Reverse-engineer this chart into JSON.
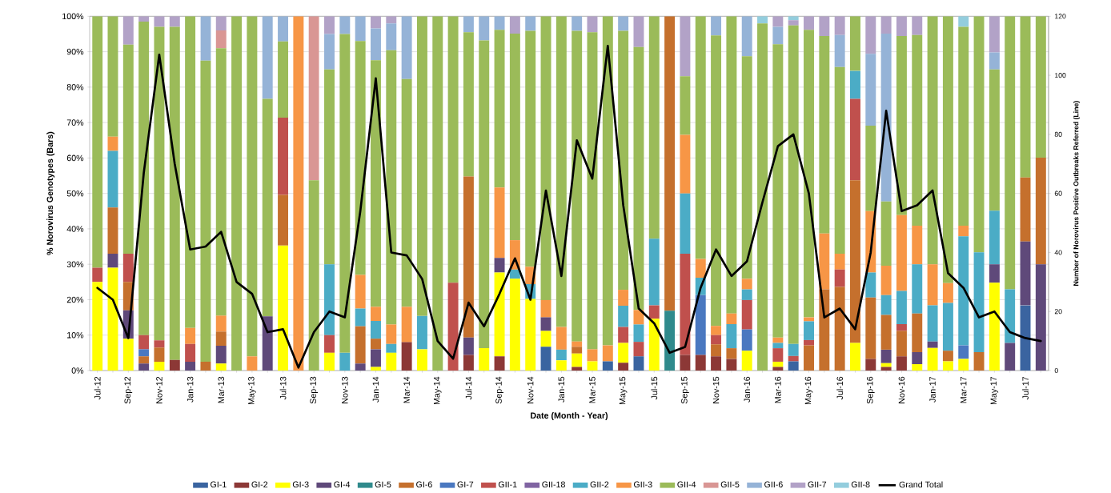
{
  "chart_data": {
    "type": "bar",
    "stacked": true,
    "xlabel": "Date (Month - Year)",
    "ylabel": "% Norovirus Genotypes (Bars)",
    "y2label": "Number of Norovirus Positive Outbreaks Referred (Line)",
    "categories": [
      "Jul-12",
      null,
      "Sep-12",
      null,
      "Nov-12",
      null,
      "Jan-13",
      null,
      "Mar-13",
      null,
      "May-13",
      null,
      "Jul-13",
      null,
      "Sep-13",
      null,
      "Nov-13",
      null,
      "Jan-14",
      null,
      "Mar-14",
      null,
      "May-14",
      null,
      "Jul-14",
      null,
      "Sep-14",
      null,
      "Nov-14",
      null,
      "Jan-15",
      null,
      "Mar-15",
      null,
      "May-15",
      null,
      "Jul-15",
      null,
      "Sep-15",
      null,
      "Nov-15",
      null,
      "Jan-16",
      null,
      "Mar-16",
      null,
      "May-16",
      null,
      "Jul-16",
      null,
      "Sep-16",
      null,
      "Nov-16",
      null,
      "Jan-17",
      null,
      "Mar-17",
      null,
      "May-17",
      null,
      "Jul-17",
      null
    ],
    "ylim": [
      0,
      100
    ],
    "yticks": [
      {
        "value": 0,
        "label": "0%"
      },
      {
        "value": 10,
        "label": "10%"
      },
      {
        "value": 20,
        "label": "20%"
      },
      {
        "value": 30,
        "label": "30%"
      },
      {
        "value": 40,
        "label": "40%"
      },
      {
        "value": 50,
        "label": "50%"
      },
      {
        "value": 60,
        "label": "60%"
      },
      {
        "value": 70,
        "label": "70%"
      },
      {
        "value": 80,
        "label": "80%"
      },
      {
        "value": 90,
        "label": "90%"
      },
      {
        "value": 100,
        "label": "100%"
      }
    ],
    "y2lim": [
      0,
      120
    ],
    "y2ticks": [
      0,
      20,
      40,
      60,
      80,
      100,
      120
    ],
    "grid": "y",
    "legend": "bottom",
    "series": [
      {
        "name": "GI-1",
        "color": "#3a64a0",
        "values": [
          0,
          0,
          0,
          0,
          0,
          0,
          0,
          0,
          0,
          0,
          0,
          0,
          0,
          0,
          0,
          0,
          0,
          0,
          0,
          0,
          0,
          0,
          0,
          0,
          0,
          0,
          0,
          0,
          0,
          6.7,
          0,
          0,
          0,
          2.6,
          0,
          4,
          0,
          0,
          0,
          0,
          0,
          0,
          0,
          0,
          0,
          2.6,
          0,
          0,
          0,
          0,
          0,
          0,
          0,
          0,
          0,
          0,
          0,
          0,
          0,
          0,
          18.4,
          0
        ]
      },
      {
        "name": "GI-2",
        "color": "#8c3836",
        "values": [
          0,
          0,
          0,
          0,
          0,
          3,
          0,
          0,
          0,
          0,
          0,
          0,
          0,
          0,
          0,
          0,
          0,
          0,
          0,
          0,
          8,
          0,
          0,
          0,
          4.4,
          0,
          4,
          0,
          0,
          0,
          0,
          1,
          0,
          0,
          2.2,
          0,
          0,
          0,
          4.4,
          4.4,
          4,
          3.3,
          0,
          0,
          1,
          0,
          0,
          0,
          0,
          0,
          3.3,
          1,
          4,
          0,
          0,
          0,
          0,
          0,
          0,
          0,
          0,
          0
        ]
      },
      {
        "name": "GI-3",
        "color": "#ffff00",
        "values": [
          25,
          29,
          9,
          0,
          2.5,
          0,
          0,
          0,
          2,
          0,
          0,
          0,
          35.3,
          0,
          0,
          5,
          0,
          0,
          1,
          5,
          0,
          6,
          0,
          0,
          0,
          6.3,
          23.7,
          25.9,
          20.2,
          4.5,
          2.9,
          3.8,
          2.6,
          0,
          5.6,
          0,
          14.6,
          0,
          0,
          0,
          0,
          0,
          5.6,
          0,
          1.5,
          0,
          0,
          0,
          0,
          7.8,
          0,
          1.1,
          0,
          1.8,
          6.4,
          2.6,
          3.3,
          0,
          24.8,
          0,
          0,
          0
        ]
      },
      {
        "name": "GI-4",
        "color": "#5f497a",
        "values": [
          0,
          4,
          8,
          2,
          0,
          0,
          2.5,
          0,
          5,
          0,
          0,
          15.3,
          0,
          0,
          0,
          0,
          0,
          2,
          5,
          0,
          0,
          0,
          0,
          0,
          4.9,
          0,
          4.1,
          0,
          0,
          3.8,
          0,
          0,
          0,
          0,
          0,
          0,
          0,
          0,
          0,
          0,
          0,
          0,
          0,
          0,
          0,
          0,
          0,
          0,
          0,
          0,
          0,
          3.8,
          0,
          3.4,
          1.8,
          0,
          0,
          0,
          5.2,
          7.8,
          18,
          30
        ]
      },
      {
        "name": "GI-5",
        "color": "#2f8a8c",
        "values": [
          0,
          0,
          0,
          0,
          0,
          0,
          0,
          0,
          0,
          0,
          0,
          0,
          0,
          0,
          0,
          0,
          0,
          0,
          0,
          0,
          0,
          0,
          0,
          0,
          0,
          0,
          0,
          0,
          0,
          0,
          0,
          0,
          0,
          0,
          0,
          0,
          0,
          16.9,
          0,
          0,
          0,
          0,
          0,
          0,
          0,
          0,
          0,
          0,
          0,
          0,
          0,
          0,
          0,
          0,
          0,
          0,
          0,
          0,
          0,
          0,
          0,
          0
        ]
      },
      {
        "name": "GI-6",
        "color": "#c5702d",
        "values": [
          0,
          13,
          8,
          2,
          4,
          0,
          0,
          2.5,
          4,
          0,
          0,
          0,
          14.3,
          0,
          0,
          0,
          0,
          10.5,
          3,
          0,
          0,
          0,
          0,
          0,
          45.5,
          0,
          0,
          0,
          0,
          0,
          0,
          1.9,
          0,
          0,
          0,
          0,
          0,
          83.1,
          0,
          0,
          3.4,
          3,
          0,
          0,
          0,
          0,
          7.1,
          22.9,
          23.6,
          45.9,
          17.3,
          9.8,
          7.2,
          10.9,
          0,
          3,
          0,
          5.2,
          0,
          0,
          18.1,
          30.1
        ]
      },
      {
        "name": "GI-7",
        "color": "#4a78c0",
        "values": [
          0,
          0,
          0,
          2,
          0,
          0,
          0,
          0,
          0,
          0,
          0,
          0,
          0,
          0,
          0,
          0,
          0,
          0,
          0,
          0,
          0,
          0,
          0,
          0,
          0,
          0,
          0,
          0,
          0,
          0,
          0,
          0,
          0,
          0,
          0,
          0,
          0,
          0,
          0,
          16.9,
          0,
          0,
          6,
          0,
          0,
          0,
          0,
          0,
          0,
          0,
          0,
          0,
          0,
          0,
          0,
          0,
          3.8,
          0,
          0,
          0,
          0,
          0
        ]
      },
      {
        "name": "GII-1",
        "color": "#c0504d",
        "values": [
          4,
          0,
          8,
          4,
          2,
          0,
          5,
          0,
          0,
          0,
          0,
          0,
          21.8,
          0,
          0,
          5,
          0,
          0,
          0,
          0,
          0,
          0,
          0,
          24.8,
          0,
          0,
          0,
          0,
          0,
          0,
          0,
          0,
          0,
          0,
          4.5,
          4.1,
          3.8,
          0,
          28.6,
          0,
          2.6,
          0,
          8.3,
          0,
          3.8,
          1.5,
          1.5,
          0,
          4.9,
          23,
          0,
          0,
          1.9,
          0,
          0,
          0,
          0,
          0,
          0,
          0,
          0,
          0
        ]
      },
      {
        "name": "GII-18",
        "color": "#8064a2",
        "values": [
          0,
          0,
          0,
          0,
          0,
          0,
          0,
          0,
          0,
          0,
          0,
          0,
          0,
          0,
          0,
          0,
          0,
          0,
          0,
          0,
          0,
          0,
          0,
          0,
          0,
          0,
          0,
          0,
          0,
          0,
          0,
          0,
          0,
          0,
          0,
          0,
          0,
          0,
          0,
          0,
          0,
          0,
          0,
          0,
          0,
          0,
          0,
          0,
          0,
          0,
          0,
          0,
          0,
          0,
          0,
          0,
          0,
          0,
          0,
          0,
          0,
          0
        ]
      },
      {
        "name": "GII-2",
        "color": "#4bacc6",
        "values": [
          0,
          16,
          0,
          0,
          0,
          0,
          0,
          0,
          0,
          0,
          0,
          0,
          0,
          0,
          0,
          20,
          5,
          5,
          5,
          2.5,
          0,
          9.4,
          0,
          0,
          0,
          0,
          0,
          2.6,
          4.2,
          0,
          3,
          0,
          0,
          0,
          6,
          4.9,
          18.8,
          0,
          17,
          4.9,
          0,
          6.8,
          3,
          0,
          1.5,
          3.4,
          5.3,
          0,
          0,
          7.9,
          7.1,
          5.6,
          9.4,
          13.9,
          10.2,
          13.5,
          30.8,
          28.2,
          15.1,
          15.1,
          0,
          0
        ]
      },
      {
        "name": "GII-3",
        "color": "#f79646",
        "values": [
          0,
          4,
          0,
          0,
          0,
          0,
          4.5,
          0,
          4.5,
          0,
          4,
          0,
          0,
          100,
          0,
          0,
          0,
          9.5,
          4,
          5.5,
          10,
          0,
          0,
          0,
          0,
          0,
          19.9,
          8.3,
          4.9,
          4.9,
          6.4,
          1.5,
          3.4,
          4.5,
          4.5,
          4.1,
          0,
          0,
          16.5,
          5.3,
          2.6,
          3,
          3,
          0,
          1.5,
          0,
          1.1,
          15.8,
          4.5,
          0,
          17.3,
          8.3,
          21.4,
          10.9,
          11.6,
          5.6,
          3,
          0,
          0,
          0,
          0,
          0
        ]
      },
      {
        "name": "GII-4",
        "color": "#9bbb59",
        "values": [
          71,
          34,
          59,
          88.5,
          88.5,
          94,
          88,
          85,
          75.5,
          100,
          96,
          61.4,
          21.5,
          0,
          53.7,
          55,
          90,
          66,
          69.6,
          77.4,
          64.3,
          84.6,
          100,
          75.2,
          40.7,
          86.9,
          44.5,
          58.3,
          66.6,
          80.1,
          87.7,
          87.7,
          89.5,
          92.9,
          73.1,
          74.2,
          62.8,
          0,
          16.6,
          68.5,
          82,
          83.9,
          62.8,
          98,
          82.8,
          89.9,
          81.2,
          55.7,
          52.7,
          15.4,
          24.1,
          18.1,
          50.5,
          53.8,
          70,
          75.3,
          56.1,
          66.6,
          39.9,
          77.1,
          45.5,
          39.9
        ]
      },
      {
        "name": "GII-5",
        "color": "#d99694",
        "values": [
          0,
          0,
          0,
          0,
          0,
          0,
          0,
          0,
          5,
          0,
          0,
          0,
          0,
          0,
          46.3,
          0,
          0,
          0,
          0,
          0,
          0,
          0,
          0,
          0,
          0,
          0,
          0,
          0,
          0,
          0,
          0,
          0,
          0,
          0,
          0,
          0,
          0,
          0,
          0,
          0,
          0,
          0,
          0,
          0,
          0,
          0,
          0,
          0,
          0,
          0,
          0,
          0,
          0,
          0,
          0,
          0,
          0,
          0,
          0,
          0,
          0,
          0
        ]
      },
      {
        "name": "GII-6",
        "color": "#95b3d7",
        "values": [
          0,
          0,
          0,
          0,
          0,
          0,
          0,
          12.5,
          0,
          0,
          0,
          23.3,
          7.1,
          0,
          0,
          10,
          5,
          7,
          9,
          7.6,
          17.7,
          0,
          0,
          0,
          4.5,
          6.8,
          3.8,
          0,
          4.1,
          0,
          0,
          4.1,
          0,
          0,
          4.1,
          0,
          0,
          0,
          0,
          0,
          5.4,
          0,
          11.3,
          0,
          4.9,
          0,
          0,
          0,
          9,
          0,
          20.3,
          47.4,
          0,
          0,
          0,
          0,
          0,
          0,
          4.8,
          0,
          0,
          0
        ]
      },
      {
        "name": "GII-7",
        "color": "#b2a2c7",
        "values": [
          0,
          0,
          8,
          1.5,
          3,
          3,
          0,
          0,
          4,
          0,
          0,
          0,
          0,
          0,
          0,
          5,
          0,
          0,
          3.4,
          2,
          0,
          0,
          0,
          0,
          0,
          0,
          0,
          4.9,
          0,
          0,
          0,
          0,
          4.5,
          0,
          0,
          8.7,
          0,
          0,
          16.9,
          0,
          0,
          0,
          0,
          0,
          3,
          1.5,
          3.8,
          5.6,
          5.3,
          0,
          10.6,
          4.9,
          5.6,
          5.3,
          0,
          0,
          0,
          0,
          10.2,
          0,
          0,
          0
        ]
      },
      {
        "name": "GII-8",
        "color": "#93cddd",
        "values": [
          0,
          0,
          0,
          0,
          0,
          0,
          0,
          0,
          0,
          0,
          0,
          0,
          0,
          0,
          0,
          0,
          0,
          0,
          0,
          0,
          0,
          0,
          0,
          0,
          0,
          0,
          0,
          0,
          0,
          0,
          0,
          0,
          0,
          0,
          0,
          0,
          0,
          0,
          0,
          0,
          0,
          0,
          0,
          2,
          0,
          1.1,
          0,
          0,
          0,
          0,
          0,
          0,
          0,
          0,
          0,
          0,
          3,
          0,
          0,
          0,
          0,
          0
        ]
      },
      {
        "name": "Grand Total",
        "type": "line",
        "axis": "y2",
        "color": "#000000",
        "values": [
          28,
          24,
          11,
          67,
          107,
          70,
          41,
          42,
          47,
          30,
          26,
          13,
          14,
          1,
          13,
          20,
          18,
          54,
          99,
          40,
          39,
          31,
          10,
          4,
          23,
          15,
          26,
          38,
          24,
          61,
          32,
          78,
          65,
          110,
          56,
          21,
          16,
          6,
          8,
          28,
          41,
          32,
          37,
          57,
          76,
          80,
          60,
          18,
          21,
          14,
          40,
          88,
          54,
          56,
          61,
          33,
          28,
          18,
          20,
          13,
          11,
          10
        ]
      }
    ]
  }
}
